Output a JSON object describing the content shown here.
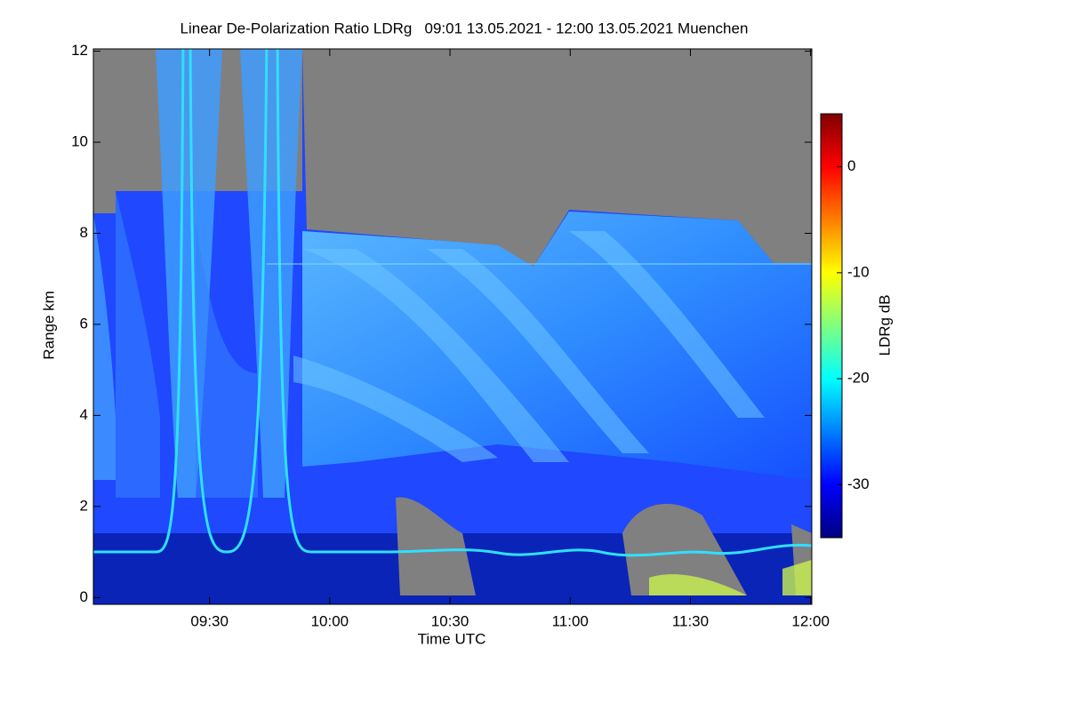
{
  "chart_data": {
    "type": "heatmap",
    "title": "Linear De-Polarization Ratio LDRg   09:01 13.05.2021 - 12:00 13.05.2021 Muenchen",
    "x_label": "Time UTC",
    "y_label": "Range km",
    "colorbar_label": "LDRg dB",
    "xlim": [
      541,
      720.3
    ],
    "xticks": [
      {
        "value": 570,
        "label": "09:30"
      },
      {
        "value": 600,
        "label": "10:00"
      },
      {
        "value": 630,
        "label": "10:30"
      },
      {
        "value": 660,
        "label": "11:00"
      },
      {
        "value": 690,
        "label": "11:30"
      },
      {
        "value": 720,
        "label": "12:00"
      }
    ],
    "ylim": [
      -0.15,
      12.05
    ],
    "yticks": [
      0,
      2,
      4,
      6,
      8,
      10,
      12
    ],
    "clim": [
      -35,
      5
    ],
    "cticks": [
      -30,
      -20,
      -10,
      0
    ],
    "colormap": [
      "#00007f",
      "#0000ff",
      "#007fff",
      "#00ffff",
      "#7fff7f",
      "#ffff00",
      "#ff7f00",
      "#ff0000",
      "#7f0000"
    ]
  }
}
